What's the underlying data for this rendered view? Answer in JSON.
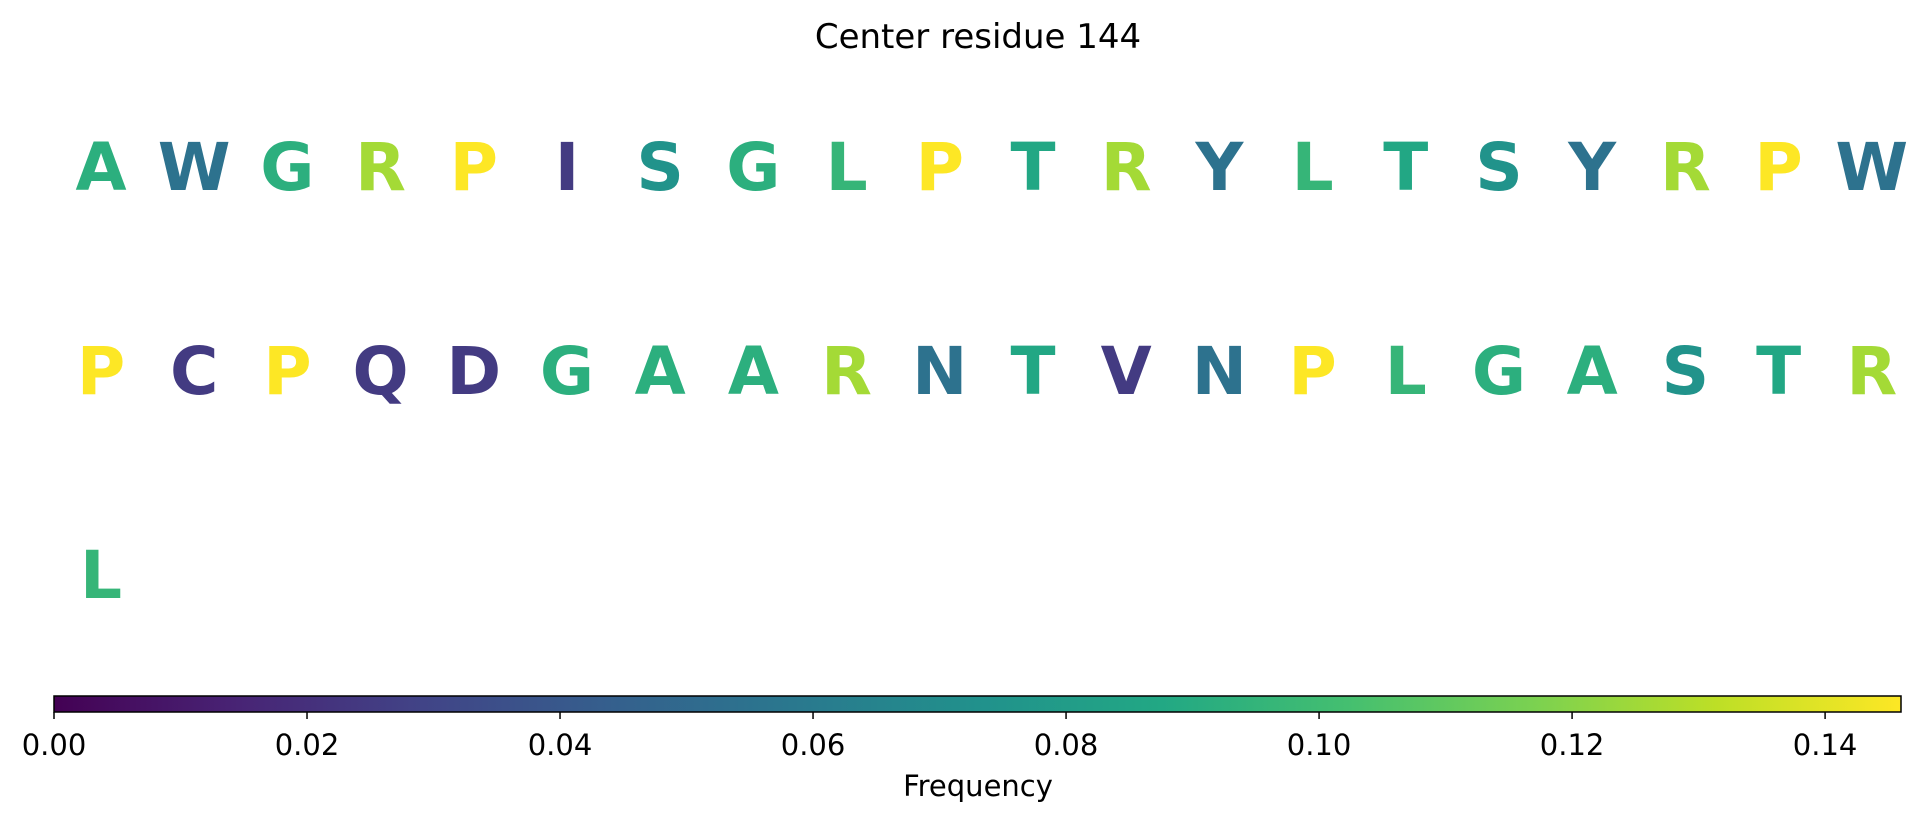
{
  "chart_data": {
    "type": "table",
    "title": "Center residue 144",
    "colormap": "viridis",
    "color_range": [
      0,
      0.146
    ],
    "colorbar": {
      "label": "Frequency",
      "ticks": [
        0.0,
        0.02,
        0.04,
        0.06,
        0.08,
        0.1,
        0.12,
        0.14
      ],
      "tick_labels": [
        "0.00",
        "0.02",
        "0.04",
        "0.06",
        "0.08",
        "0.10",
        "0.12",
        "0.14"
      ]
    },
    "residue_frequency": {
      "A": 0.092,
      "W": 0.055,
      "G": 0.092,
      "R": 0.126,
      "P": 0.146,
      "I": 0.025,
      "S": 0.074,
      "L": 0.096,
      "T": 0.087,
      "Y": 0.055,
      "C": 0.025,
      "Q": 0.025,
      "D": 0.025,
      "N": 0.055,
      "V": 0.025
    },
    "rows": [
      [
        "A",
        "W",
        "G",
        "R",
        "P",
        "I",
        "S",
        "G",
        "L",
        "P",
        "T",
        "R",
        "Y",
        "L",
        "T",
        "S",
        "Y",
        "R",
        "P",
        "W"
      ],
      [
        "P",
        "C",
        "P",
        "Q",
        "D",
        "G",
        "A",
        "A",
        "R",
        "N",
        "T",
        "V",
        "N",
        "P",
        "L",
        "G",
        "A",
        "S",
        "T",
        "R"
      ],
      [
        "L"
      ]
    ]
  }
}
